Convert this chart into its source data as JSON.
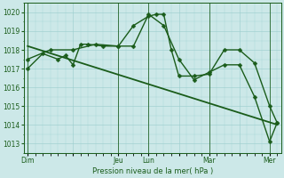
{
  "background_color": "#cce8e8",
  "grid_color": "#99cccc",
  "line_color": "#1a5c1a",
  "text_color": "#1a5c1a",
  "xlabel": "Pression niveau de la mer( hPa )",
  "ylim": [
    1012.5,
    1020.5
  ],
  "yticks": [
    1013,
    1014,
    1015,
    1016,
    1017,
    1018,
    1019,
    1020
  ],
  "x_day_labels": [
    "Dim",
    "",
    "Jeu",
    "Lun",
    "",
    "Mar",
    "",
    "Mer"
  ],
  "x_day_positions": [
    0,
    6,
    12,
    16,
    20,
    24,
    28,
    32
  ],
  "vline_positions": [
    0,
    12,
    16,
    24,
    32
  ],
  "xlim": [
    -0.5,
    33.5
  ],
  "series": [
    {
      "x": [
        0,
        2,
        4,
        5,
        6,
        7,
        8,
        10,
        12,
        14,
        16,
        17,
        18,
        19,
        20,
        22,
        24,
        26,
        28,
        30,
        32,
        33
      ],
      "y": [
        1017.0,
        1017.8,
        1017.5,
        1017.7,
        1017.2,
        1018.3,
        1018.3,
        1018.2,
        1018.2,
        1019.3,
        1019.8,
        1019.9,
        1019.9,
        1018.0,
        1016.6,
        1016.6,
        1016.7,
        1018.0,
        1018.0,
        1017.3,
        1015.0,
        1014.1
      ],
      "marker": "D",
      "markersize": 2.5,
      "linewidth": 1.0
    },
    {
      "x": [
        0,
        3,
        6,
        9,
        12,
        14,
        16,
        18,
        20,
        22,
        24,
        26,
        28,
        30,
        32,
        33
      ],
      "y": [
        1017.5,
        1018.0,
        1018.0,
        1018.3,
        1018.2,
        1018.2,
        1019.9,
        1019.3,
        1017.5,
        1016.4,
        1016.8,
        1017.2,
        1017.2,
        1015.5,
        1013.1,
        1014.1
      ],
      "marker": "D",
      "markersize": 2.5,
      "linewidth": 1.0
    },
    {
      "x": [
        0,
        33
      ],
      "y": [
        1018.2,
        1014.0
      ],
      "marker": "none",
      "markersize": 0,
      "linewidth": 1.3
    }
  ]
}
